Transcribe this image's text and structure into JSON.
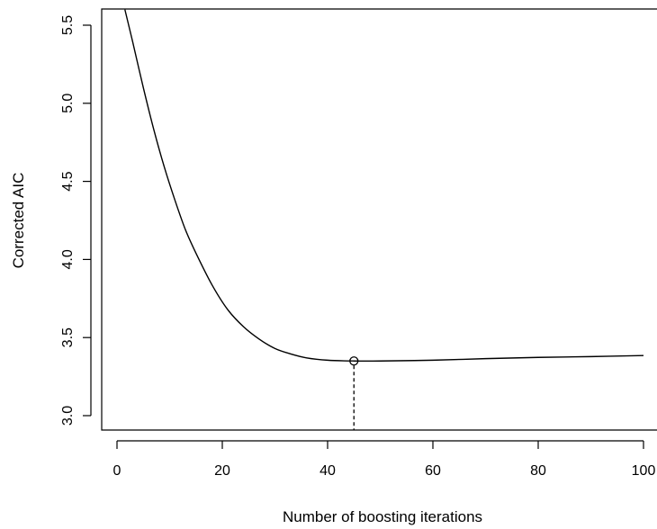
{
  "chart_data": {
    "type": "line",
    "title": "",
    "xlabel": "Number of boosting iterations",
    "ylabel": "Corrected AIC",
    "xlim": [
      -3,
      103
    ],
    "ylim": [
      2.93,
      5.6
    ],
    "x_ticks": [
      0,
      20,
      40,
      60,
      80,
      100
    ],
    "x_tick_labels": [
      "0",
      "20",
      "40",
      "60",
      "80",
      "100"
    ],
    "y_ticks": [
      3.0,
      3.5,
      4.0,
      4.5,
      5.0,
      5.5
    ],
    "y_tick_labels": [
      "3.0",
      "3.5",
      "4.0",
      "4.5",
      "5.0",
      "5.5"
    ],
    "grid": false,
    "series": [
      {
        "x": [
          1.5,
          3,
          5,
          7,
          9,
          11,
          13,
          15,
          18,
          21,
          24,
          27,
          30,
          33,
          36,
          40,
          45,
          50,
          60,
          70,
          80,
          90,
          100
        ],
        "values": [
          5.6,
          5.39,
          5.1,
          4.83,
          4.59,
          4.38,
          4.19,
          4.04,
          3.84,
          3.68,
          3.57,
          3.49,
          3.43,
          3.395,
          3.37,
          3.355,
          3.35,
          3.35,
          3.355,
          3.365,
          3.373,
          3.378,
          3.385
        ]
      }
    ],
    "optimum": {
      "x": 45,
      "y": 3.35
    }
  }
}
